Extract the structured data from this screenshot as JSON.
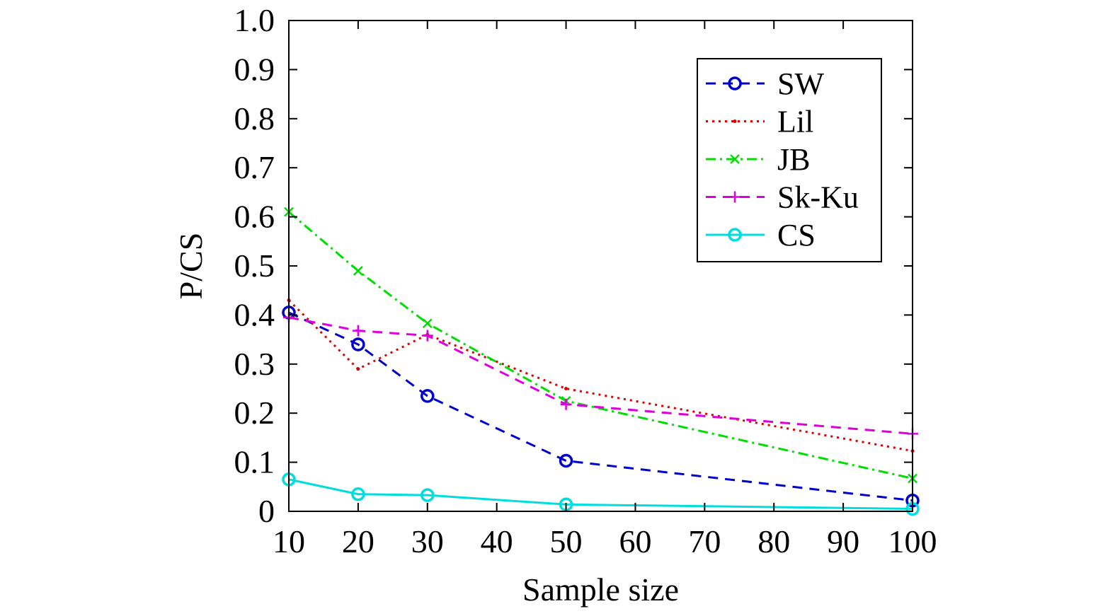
{
  "chart_data": {
    "type": "line",
    "title": "",
    "xlabel": "Sample size",
    "ylabel": "P/CS",
    "x_ticks": [
      "10",
      "20",
      "30",
      "40",
      "50",
      "60",
      "70",
      "80",
      "90",
      "100"
    ],
    "y_ticks": [
      "0",
      "0.1",
      "0.2",
      "0.3",
      "0.4",
      "0.5",
      "0.6",
      "0.7",
      "0.8",
      "0.9",
      "1.0"
    ],
    "xlim": [
      10,
      100
    ],
    "ylim": [
      0,
      1
    ],
    "grid": false,
    "legend_position": "top-right",
    "x": [
      10,
      20,
      30,
      50,
      100
    ],
    "series": [
      {
        "name": "SW",
        "values": [
          0.405,
          0.34,
          0.235,
          0.103,
          0.022
        ],
        "color": "#0000cc",
        "marker": "circle",
        "line_style": "dashed"
      },
      {
        "name": "Lil",
        "values": [
          0.43,
          0.29,
          0.36,
          0.25,
          0.123
        ],
        "color": "#dd0000",
        "marker": "dot",
        "line_style": "dotted"
      },
      {
        "name": "JB",
        "values": [
          0.61,
          0.49,
          0.383,
          0.225,
          0.067
        ],
        "color": "#00dd00",
        "marker": "x",
        "line_style": "dashdot"
      },
      {
        "name": "Sk-Ku",
        "values": [
          0.395,
          0.368,
          0.358,
          0.218,
          0.158
        ],
        "color": "#dd00dd",
        "marker": "plus",
        "line_style": "dashed"
      },
      {
        "name": "CS",
        "values": [
          0.065,
          0.035,
          0.033,
          0.014,
          0.005
        ],
        "color": "#00dddd",
        "marker": "circle",
        "line_style": "solid"
      }
    ]
  }
}
